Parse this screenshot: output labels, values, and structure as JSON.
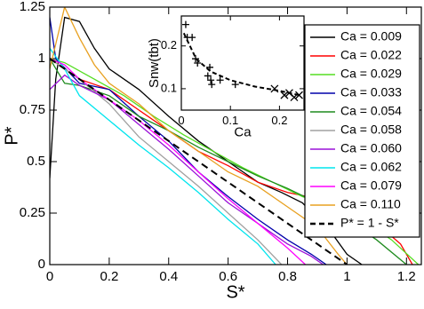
{
  "chart_data": [
    {
      "type": "line",
      "xlabel": "S*",
      "ylabel": "P*",
      "xlim": [
        0,
        1.25
      ],
      "ylim": [
        0,
        1.25
      ],
      "xticks": [
        0,
        0.2,
        0.4,
        0.6,
        0.8,
        1,
        1.2
      ],
      "yticks": [
        0,
        0.25,
        0.5,
        0.75,
        1,
        1.25
      ],
      "series": [
        {
          "name": "Ca = 0.009",
          "color": "#000000",
          "x": [
            0,
            0.02,
            0.05,
            0.1,
            0.15,
            0.2,
            0.3,
            0.4,
            0.5,
            0.65,
            0.7,
            0.78,
            0.85,
            0.95,
            1.0,
            1.05
          ],
          "values": [
            0.42,
            0.9,
            1.2,
            1.18,
            1.05,
            0.95,
            0.85,
            0.72,
            0.6,
            0.45,
            0.4,
            0.35,
            0.3,
            0.15,
            0.05,
            0
          ]
        },
        {
          "name": "Ca = 0.022",
          "color": "#ff0000",
          "x": [
            0,
            0.05,
            0.1,
            0.2,
            0.3,
            0.4,
            0.5,
            0.6,
            0.7,
            0.8,
            0.9,
            1.0,
            1.1,
            1.18,
            1.22
          ],
          "values": [
            1.0,
            0.95,
            0.9,
            0.85,
            0.75,
            0.65,
            0.55,
            0.48,
            0.4,
            0.35,
            0.32,
            0.28,
            0.2,
            0.1,
            0
          ]
        },
        {
          "name": "Ca = 0.029",
          "color": "#55dd22",
          "x": [
            0,
            0.05,
            0.15,
            0.25,
            0.35,
            0.45,
            0.55,
            0.65,
            0.75,
            0.85,
            0.95,
            1.05,
            1.15,
            1.24
          ],
          "values": [
            1.0,
            0.98,
            0.9,
            0.82,
            0.72,
            0.63,
            0.55,
            0.47,
            0.4,
            0.33,
            0.28,
            0.22,
            0.12,
            0
          ]
        },
        {
          "name": "Ca = 0.033",
          "color": "#0000aa",
          "x": [
            0,
            0.02,
            0.1,
            0.2,
            0.3,
            0.4,
            0.5,
            0.6,
            0.7,
            0.8,
            0.88,
            0.93
          ],
          "values": [
            1.2,
            1.0,
            0.88,
            0.85,
            0.72,
            0.6,
            0.45,
            0.33,
            0.22,
            0.12,
            0.05,
            0
          ]
        },
        {
          "name": "Ca = 0.054",
          "color": "#1f8b1f",
          "x": [
            0,
            0.05,
            0.1,
            0.2,
            0.3,
            0.4,
            0.5,
            0.6,
            0.7,
            0.8,
            0.9,
            1.0,
            1.1,
            1.2
          ],
          "values": [
            1.0,
            0.88,
            0.87,
            0.82,
            0.72,
            0.65,
            0.57,
            0.5,
            0.43,
            0.37,
            0.3,
            0.22,
            0.12,
            0
          ]
        },
        {
          "name": "Ca = 0.058",
          "color": "#a0a0a0",
          "x": [
            0,
            0.1,
            0.2,
            0.3,
            0.4,
            0.5,
            0.6,
            0.7,
            0.78
          ],
          "values": [
            1.0,
            0.9,
            0.78,
            0.62,
            0.5,
            0.38,
            0.25,
            0.12,
            0
          ]
        },
        {
          "name": "Ca = 0.060",
          "color": "#9a10d8",
          "x": [
            0,
            0.05,
            0.1,
            0.2,
            0.3,
            0.4,
            0.5,
            0.6,
            0.7,
            0.8,
            0.88,
            0.92
          ],
          "values": [
            0.85,
            0.92,
            0.87,
            0.8,
            0.68,
            0.56,
            0.43,
            0.3,
            0.2,
            0.1,
            0.04,
            0
          ]
        },
        {
          "name": "Ca = 0.062",
          "color": "#00e5ee",
          "x": [
            0,
            0.05,
            0.1,
            0.2,
            0.3,
            0.4,
            0.5,
            0.6,
            0.7,
            0.76
          ],
          "values": [
            1.05,
            0.95,
            0.82,
            0.7,
            0.58,
            0.47,
            0.35,
            0.22,
            0.1,
            0
          ]
        },
        {
          "name": "Ca = 0.079",
          "color": "#ff00ff",
          "x": [
            0,
            0.05,
            0.1,
            0.2,
            0.3,
            0.4,
            0.5,
            0.6,
            0.7,
            0.8,
            0.86
          ],
          "values": [
            1.0,
            0.97,
            0.9,
            0.8,
            0.7,
            0.58,
            0.45,
            0.32,
            0.2,
            0.08,
            0
          ]
        },
        {
          "name": "Ca = 0.110",
          "color": "#e8a020",
          "x": [
            0,
            0.05,
            0.1,
            0.15,
            0.2,
            0.3,
            0.4,
            0.5,
            0.6,
            0.7,
            0.8,
            0.9,
            0.97,
            1.0
          ],
          "values": [
            0.95,
            1.25,
            1.1,
            0.97,
            0.88,
            0.78,
            0.65,
            0.55,
            0.45,
            0.38,
            0.28,
            0.18,
            0.05,
            0
          ]
        },
        {
          "name": "P* = 1 - S*",
          "color": "#000000",
          "dashed": true,
          "x": [
            0,
            1
          ],
          "values": [
            1,
            0
          ]
        }
      ]
    },
    {
      "type": "scatter",
      "xlabel": "Ca",
      "ylabel": "Snw(tbt)",
      "xlim": [
        0,
        0.25
      ],
      "ylim": [
        0.05,
        0.27
      ],
      "xticks": [
        0,
        0.1,
        0.2
      ],
      "yticks": [
        0.1,
        0.2
      ],
      "series": [
        {
          "marker": "plus",
          "color": "#000000",
          "x": [
            0.009,
            0.012,
            0.022,
            0.029,
            0.033,
            0.054,
            0.058,
            0.06,
            0.062,
            0.079,
            0.11
          ],
          "values": [
            0.25,
            0.22,
            0.22,
            0.17,
            0.16,
            0.13,
            0.15,
            0.12,
            0.11,
            0.12,
            0.11
          ]
        },
        {
          "marker": "x",
          "color": "#000000",
          "x": [
            0.19,
            0.21,
            0.22,
            0.23,
            0.24
          ],
          "values": [
            0.1,
            0.085,
            0.09,
            0.08,
            0.085
          ]
        },
        {
          "marker": "none",
          "color": "#000000",
          "dashed": true,
          "x": [
            0.005,
            0.03,
            0.06,
            0.1,
            0.15,
            0.2,
            0.24
          ],
          "values": [
            0.23,
            0.17,
            0.14,
            0.12,
            0.105,
            0.095,
            0.085
          ]
        }
      ]
    }
  ]
}
